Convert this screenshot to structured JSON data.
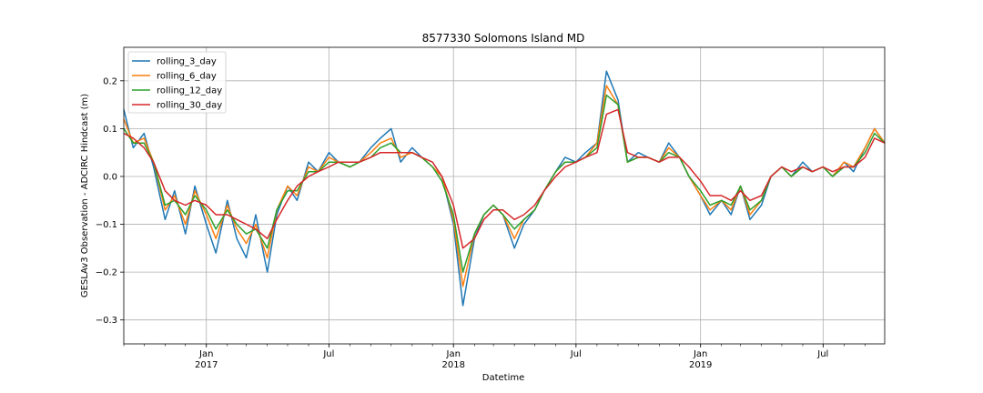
{
  "chart_data": {
    "type": "line",
    "title": "8577330 Solomons Island MD",
    "xlabel": "Datetime",
    "ylabel": "GESLAv3 Observation - ADCIRC Hindcast (m)",
    "xlim": [
      "2016-09-01",
      "2019-09-30"
    ],
    "ylim": [
      -0.35,
      0.27
    ],
    "grid": true,
    "legend_position": "top-left",
    "x_ticks": [
      {
        "date": "2017-01-01",
        "label": "Jan",
        "year": "2017"
      },
      {
        "date": "2017-07-01",
        "label": "Jul",
        "year": ""
      },
      {
        "date": "2018-01-01",
        "label": "Jan",
        "year": "2018"
      },
      {
        "date": "2018-07-01",
        "label": "Jul",
        "year": ""
      },
      {
        "date": "2019-01-01",
        "label": "Jan",
        "year": "2019"
      },
      {
        "date": "2019-07-01",
        "label": "Jul",
        "year": ""
      }
    ],
    "y_ticks": [
      0.2,
      0.1,
      0.0,
      -0.1,
      -0.2,
      -0.3
    ],
    "y_tick_labels": [
      "0.2",
      "0.1",
      "0.0",
      "−0.1",
      "−0.2",
      "−0.3"
    ],
    "x": [
      "2016-09-01",
      "2016-09-15",
      "2016-10-01",
      "2016-10-15",
      "2016-11-01",
      "2016-11-15",
      "2016-12-01",
      "2016-12-15",
      "2017-01-01",
      "2017-01-15",
      "2017-02-01",
      "2017-02-15",
      "2017-03-01",
      "2017-03-15",
      "2017-04-01",
      "2017-04-15",
      "2017-05-01",
      "2017-05-15",
      "2017-06-01",
      "2017-06-15",
      "2017-07-01",
      "2017-07-15",
      "2017-08-01",
      "2017-08-15",
      "2017-09-01",
      "2017-09-15",
      "2017-10-01",
      "2017-10-15",
      "2017-11-01",
      "2017-11-15",
      "2017-12-01",
      "2017-12-15",
      "2018-01-01",
      "2018-01-15",
      "2018-02-01",
      "2018-02-15",
      "2018-03-01",
      "2018-03-15",
      "2018-04-01",
      "2018-04-15",
      "2018-05-01",
      "2018-05-15",
      "2018-06-01",
      "2018-06-15",
      "2018-07-01",
      "2018-07-15",
      "2018-08-01",
      "2018-08-15",
      "2018-09-01",
      "2018-09-15",
      "2018-10-01",
      "2018-10-15",
      "2018-11-01",
      "2018-11-15",
      "2018-12-01",
      "2018-12-15",
      "2019-01-01",
      "2019-01-15",
      "2019-02-01",
      "2019-02-15",
      "2019-03-01",
      "2019-03-15",
      "2019-04-01",
      "2019-04-15",
      "2019-05-01",
      "2019-05-15",
      "2019-06-01",
      "2019-06-15",
      "2019-07-01",
      "2019-07-15",
      "2019-08-01",
      "2019-08-15",
      "2019-09-01",
      "2019-09-15",
      "2019-09-30"
    ],
    "series": [
      {
        "name": "rolling_3_day",
        "color": "#1f77b4",
        "values": [
          0.14,
          0.06,
          0.09,
          0.02,
          -0.09,
          -0.03,
          -0.12,
          -0.02,
          -0.1,
          -0.16,
          -0.05,
          -0.13,
          -0.17,
          -0.08,
          -0.2,
          -0.08,
          -0.02,
          -0.05,
          0.03,
          0.01,
          0.05,
          0.03,
          0.02,
          0.03,
          0.06,
          0.08,
          0.1,
          0.03,
          0.06,
          0.04,
          0.02,
          0.0,
          -0.1,
          -0.27,
          -0.13,
          -0.08,
          -0.06,
          -0.08,
          -0.15,
          -0.1,
          -0.07,
          -0.03,
          0.01,
          0.04,
          0.03,
          0.05,
          0.07,
          0.22,
          0.16,
          0.03,
          0.05,
          0.04,
          0.03,
          0.07,
          0.04,
          0.0,
          -0.04,
          -0.08,
          -0.05,
          -0.08,
          -0.02,
          -0.09,
          -0.06,
          0.0,
          0.02,
          0.0,
          0.03,
          0.01,
          0.02,
          0.0,
          0.03,
          0.01,
          0.06,
          0.1,
          0.07
        ]
      },
      {
        "name": "rolling_6_day",
        "color": "#ff7f0e",
        "values": [
          0.12,
          0.07,
          0.08,
          0.03,
          -0.07,
          -0.04,
          -0.1,
          -0.03,
          -0.08,
          -0.13,
          -0.06,
          -0.11,
          -0.14,
          -0.1,
          -0.17,
          -0.07,
          -0.02,
          -0.04,
          0.02,
          0.01,
          0.04,
          0.03,
          0.02,
          0.03,
          0.05,
          0.07,
          0.08,
          0.04,
          0.05,
          0.04,
          0.02,
          0.0,
          -0.09,
          -0.23,
          -0.12,
          -0.08,
          -0.06,
          -0.08,
          -0.13,
          -0.09,
          -0.07,
          -0.03,
          0.01,
          0.03,
          0.03,
          0.04,
          0.07,
          0.19,
          0.15,
          0.03,
          0.04,
          0.04,
          0.03,
          0.06,
          0.04,
          0.0,
          -0.04,
          -0.07,
          -0.05,
          -0.07,
          -0.02,
          -0.08,
          -0.05,
          0.0,
          0.02,
          0.0,
          0.02,
          0.01,
          0.02,
          0.0,
          0.03,
          0.02,
          0.06,
          0.1,
          0.07
        ]
      },
      {
        "name": "rolling_12_day",
        "color": "#2ca02c",
        "values": [
          0.1,
          0.07,
          0.07,
          0.03,
          -0.06,
          -0.05,
          -0.08,
          -0.04,
          -0.07,
          -0.11,
          -0.07,
          -0.1,
          -0.12,
          -0.11,
          -0.15,
          -0.07,
          -0.03,
          -0.03,
          0.01,
          0.01,
          0.03,
          0.03,
          0.02,
          0.03,
          0.04,
          0.06,
          0.07,
          0.05,
          0.05,
          0.04,
          0.02,
          -0.01,
          -0.08,
          -0.2,
          -0.12,
          -0.08,
          -0.06,
          -0.08,
          -0.11,
          -0.09,
          -0.07,
          -0.03,
          0.01,
          0.03,
          0.03,
          0.04,
          0.06,
          0.17,
          0.15,
          0.03,
          0.04,
          0.04,
          0.03,
          0.05,
          0.04,
          0.0,
          -0.03,
          -0.06,
          -0.05,
          -0.06,
          -0.02,
          -0.07,
          -0.05,
          0.0,
          0.02,
          0.0,
          0.02,
          0.01,
          0.02,
          0.0,
          0.02,
          0.02,
          0.05,
          0.09,
          0.07
        ]
      },
      {
        "name": "rolling_30_day",
        "color": "#d62728",
        "values": [
          0.09,
          0.08,
          0.06,
          0.03,
          -0.03,
          -0.05,
          -0.06,
          -0.05,
          -0.06,
          -0.08,
          -0.08,
          -0.09,
          -0.1,
          -0.11,
          -0.13,
          -0.09,
          -0.05,
          -0.02,
          0.0,
          0.01,
          0.02,
          0.03,
          0.03,
          0.03,
          0.04,
          0.05,
          0.05,
          0.05,
          0.05,
          0.04,
          0.03,
          0.0,
          -0.06,
          -0.15,
          -0.13,
          -0.09,
          -0.07,
          -0.07,
          -0.09,
          -0.08,
          -0.06,
          -0.03,
          0.0,
          0.02,
          0.03,
          0.04,
          0.05,
          0.13,
          0.14,
          0.05,
          0.04,
          0.04,
          0.03,
          0.04,
          0.04,
          0.02,
          -0.01,
          -0.04,
          -0.04,
          -0.05,
          -0.03,
          -0.05,
          -0.04,
          0.0,
          0.02,
          0.01,
          0.02,
          0.01,
          0.02,
          0.01,
          0.02,
          0.02,
          0.04,
          0.08,
          0.07
        ]
      }
    ]
  }
}
